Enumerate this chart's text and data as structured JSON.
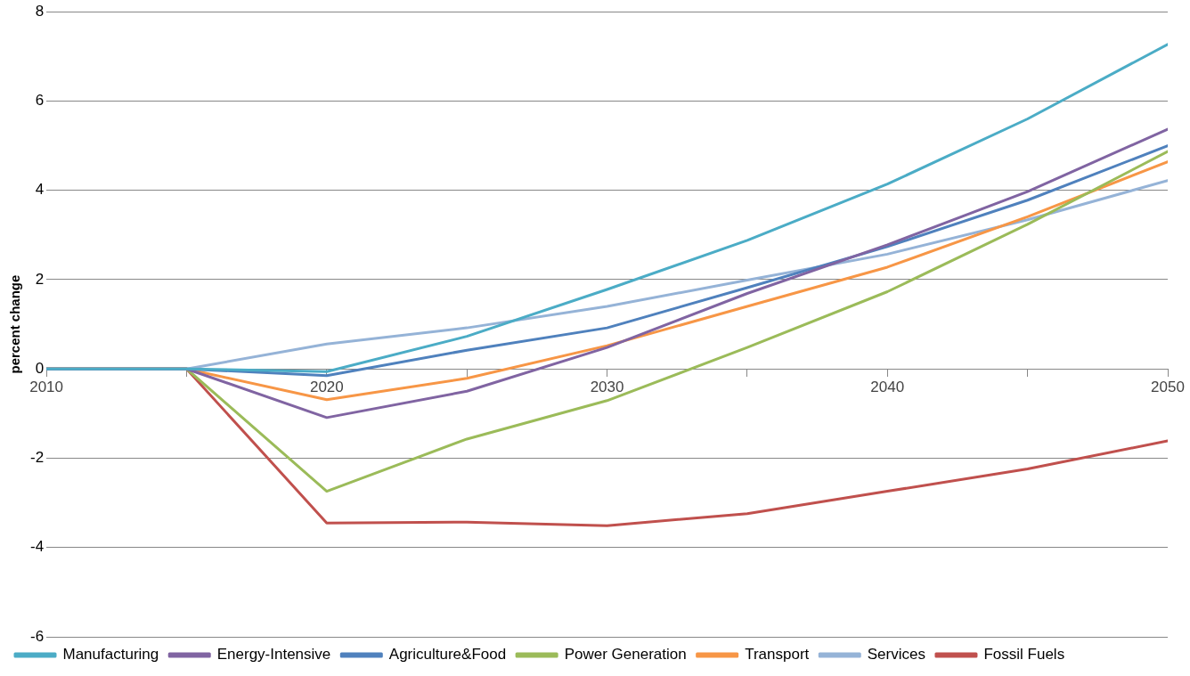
{
  "chart_data": {
    "type": "line",
    "ylabel": "percent change",
    "x": [
      2010,
      2015,
      2020,
      2025,
      2030,
      2035,
      2040,
      2045,
      2050
    ],
    "xlim": [
      2010,
      2050
    ],
    "xticks": [
      2010,
      {
        "value": 2015,
        "label": null
      },
      2020,
      {
        "value": 2025,
        "label": null
      },
      2030,
      {
        "value": 2035,
        "label": null
      },
      2040,
      {
        "value": 2045,
        "label": null
      },
      2050
    ],
    "ylim": [
      -6,
      8
    ],
    "yticks": [
      -6,
      -4,
      -2,
      0,
      2,
      4,
      6,
      8
    ],
    "grid": "y",
    "legend": "bottom",
    "marker": "none",
    "line_style": "solid",
    "series": [
      {
        "name": "Manufacturing",
        "color": "#4bacc6",
        "values": [
          0,
          0,
          -0.06,
          0.73,
          1.78,
          2.88,
          4.14,
          5.6,
          7.27
        ]
      },
      {
        "name": "Energy-Intensive",
        "color": "#8064a2",
        "values": [
          0,
          0,
          -1.09,
          -0.5,
          0.48,
          1.69,
          2.78,
          3.97,
          5.37
        ]
      },
      {
        "name": "Agriculture&Food",
        "color": "#4f81bd",
        "values": [
          0,
          0,
          -0.15,
          0.42,
          0.92,
          1.82,
          2.74,
          3.78,
          5.0
        ]
      },
      {
        "name": "Power Generation",
        "color": "#9bbb59",
        "values": [
          0,
          0,
          -2.74,
          -1.57,
          -0.71,
          0.48,
          1.73,
          3.24,
          4.87
        ]
      },
      {
        "name": "Transport",
        "color": "#f79646",
        "values": [
          0,
          0,
          -0.69,
          -0.21,
          0.52,
          1.4,
          2.28,
          3.41,
          4.64
        ]
      },
      {
        "name": "Services",
        "color": "#95b3d7",
        "values": [
          0,
          0,
          0.56,
          0.92,
          1.4,
          1.99,
          2.57,
          3.34,
          4.22
        ]
      },
      {
        "name": "Fossil Fuels",
        "color": "#c0504d",
        "values": [
          0,
          0,
          -3.45,
          -3.43,
          -3.51,
          -3.24,
          -2.74,
          -2.24,
          -1.61
        ]
      }
    ]
  }
}
